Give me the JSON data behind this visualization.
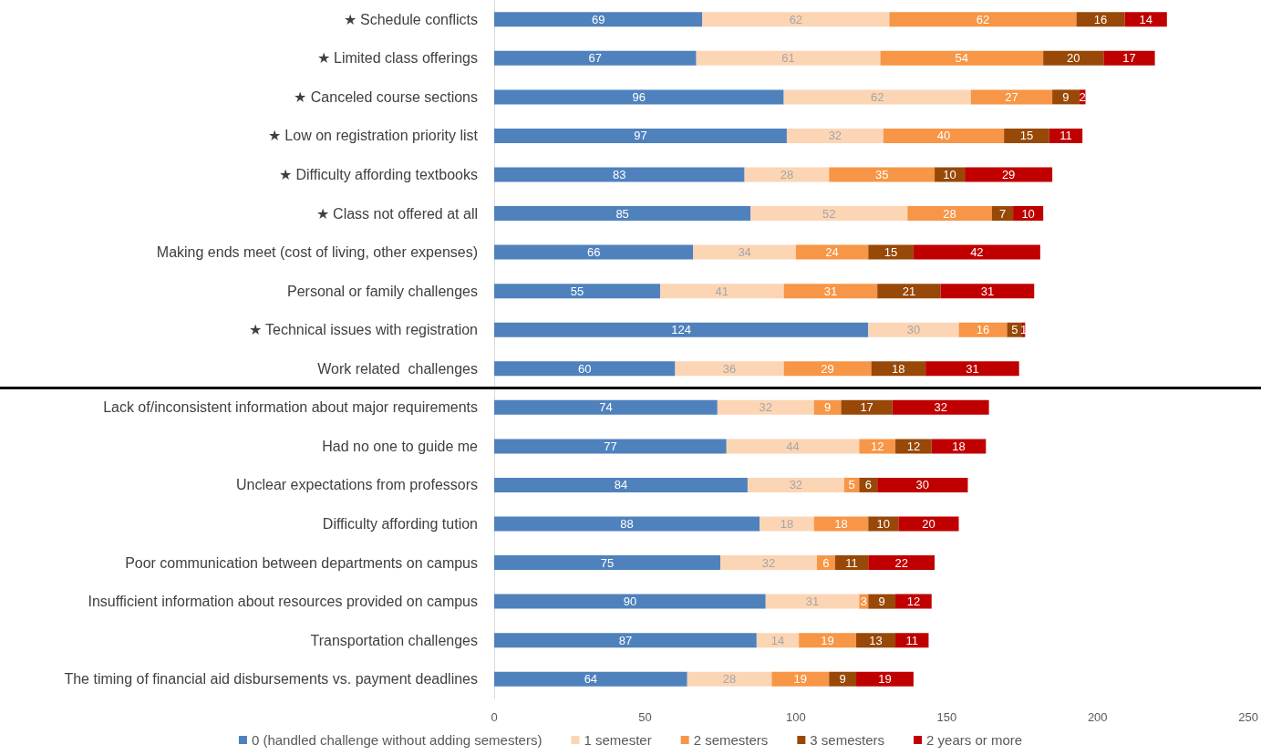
{
  "chart_data": {
    "type": "bar",
    "orientation": "horizontal",
    "stacked": true,
    "data_labels": true,
    "grid": false,
    "legend": "bottom",
    "categories": [
      "★ Schedule conflicts",
      "★ Limited class offerings",
      "★ Canceled course sections",
      "★ Low on registration priority list",
      "★ Difficulty affording textbooks",
      "★ Class not offered at all",
      "Making ends meet (cost of living, other expenses)",
      "Personal or family challenges",
      "★ Technical issues with registration",
      "Work related  challenges",
      "Lack of/inconsistent information about major requirements",
      "Had no one to guide me",
      "Unclear expectations from professors",
      "Difficulty affording tution",
      "Poor communication between departments on campus",
      "Insufficient information about resources provided on campus",
      "Transportation challenges",
      "The timing of financial aid disbursements vs. payment deadlines"
    ],
    "xlim": [
      0,
      250
    ],
    "xticks": [
      0,
      50,
      100,
      150,
      200,
      250
    ],
    "series": [
      {
        "name": "0 (handled challenge without adding semesters)",
        "color": "#4f81bd",
        "values": [
          69,
          67,
          96,
          97,
          83,
          85,
          66,
          55,
          124,
          60,
          74,
          77,
          84,
          88,
          75,
          90,
          87,
          64
        ]
      },
      {
        "name": "1 semester",
        "color": "#fcd5b5",
        "values": [
          62,
          61,
          62,
          32,
          28,
          52,
          34,
          41,
          30,
          36,
          32,
          44,
          32,
          18,
          32,
          31,
          14,
          28
        ]
      },
      {
        "name": "2 semesters",
        "color": "#f79646",
        "values": [
          62,
          54,
          27,
          40,
          35,
          28,
          24,
          31,
          16,
          29,
          9,
          12,
          5,
          18,
          6,
          3,
          19,
          19
        ]
      },
      {
        "name": "3 semesters",
        "color": "#984807",
        "values": [
          16,
          20,
          9,
          15,
          10,
          7,
          15,
          21,
          5,
          18,
          17,
          12,
          6,
          10,
          11,
          9,
          13,
          9
        ]
      },
      {
        "name": "2 years or more",
        "color": "#c00000",
        "values": [
          14,
          17,
          2,
          11,
          29,
          10,
          42,
          31,
          1,
          31,
          32,
          18,
          30,
          20,
          22,
          12,
          11,
          19
        ]
      }
    ]
  }
}
